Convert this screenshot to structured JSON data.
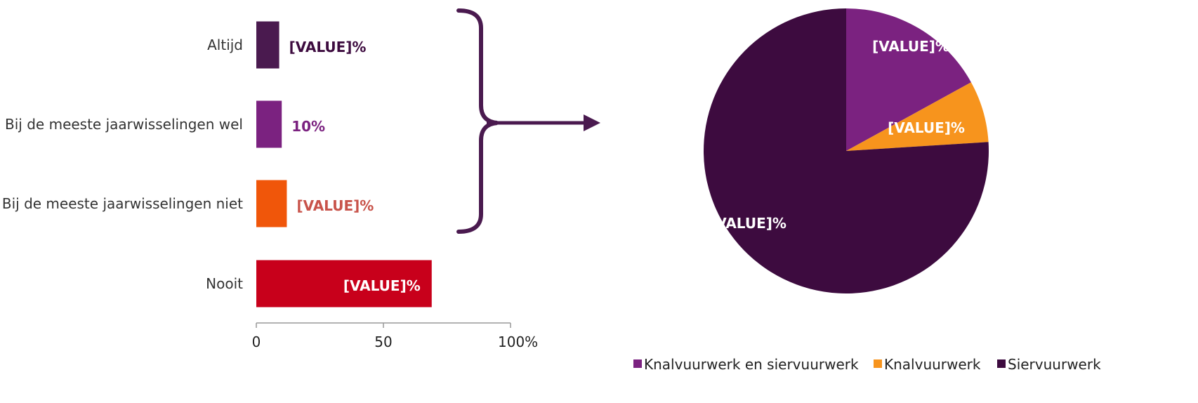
{
  "chart_data": [
    {
      "type": "bar",
      "orientation": "horizontal",
      "categories": [
        "Altijd",
        "Bij de meeste jaarwisselingen wel",
        "Bij de meeste jaarwisselingen niet",
        "Nooit"
      ],
      "values": [
        9,
        10,
        12,
        69
      ],
      "value_labels": [
        "[VALUE]%",
        "10%",
        "[VALUE]%",
        "[VALUE]%"
      ],
      "colors": [
        "#4a1a4f",
        "#7b2280",
        "#f0560a",
        "#c8001b"
      ],
      "label_colors": [
        "#3d0b3f",
        "#7b2280",
        "#c8534a",
        "#ffffff"
      ],
      "xlim": [
        0,
        100
      ],
      "x_ticks": [
        "0",
        "50",
        "100%"
      ],
      "grid": false
    },
    {
      "type": "pie",
      "slices": [
        {
          "name": "Knalvuurwerk en siervuurwerk",
          "value": 17,
          "label": "[VALUE]%",
          "color": "#7b2280"
        },
        {
          "name": "Knalvuurwerk",
          "value": 7,
          "label": "[VALUE]%",
          "color": "#f7941d"
        },
        {
          "name": "Siervuurwerk",
          "value": 76,
          "label": "[VALUE]%",
          "color": "#3d0b3f"
        }
      ],
      "legend_position": "bottom"
    }
  ],
  "connector": {
    "color": "#4a1a4f"
  }
}
